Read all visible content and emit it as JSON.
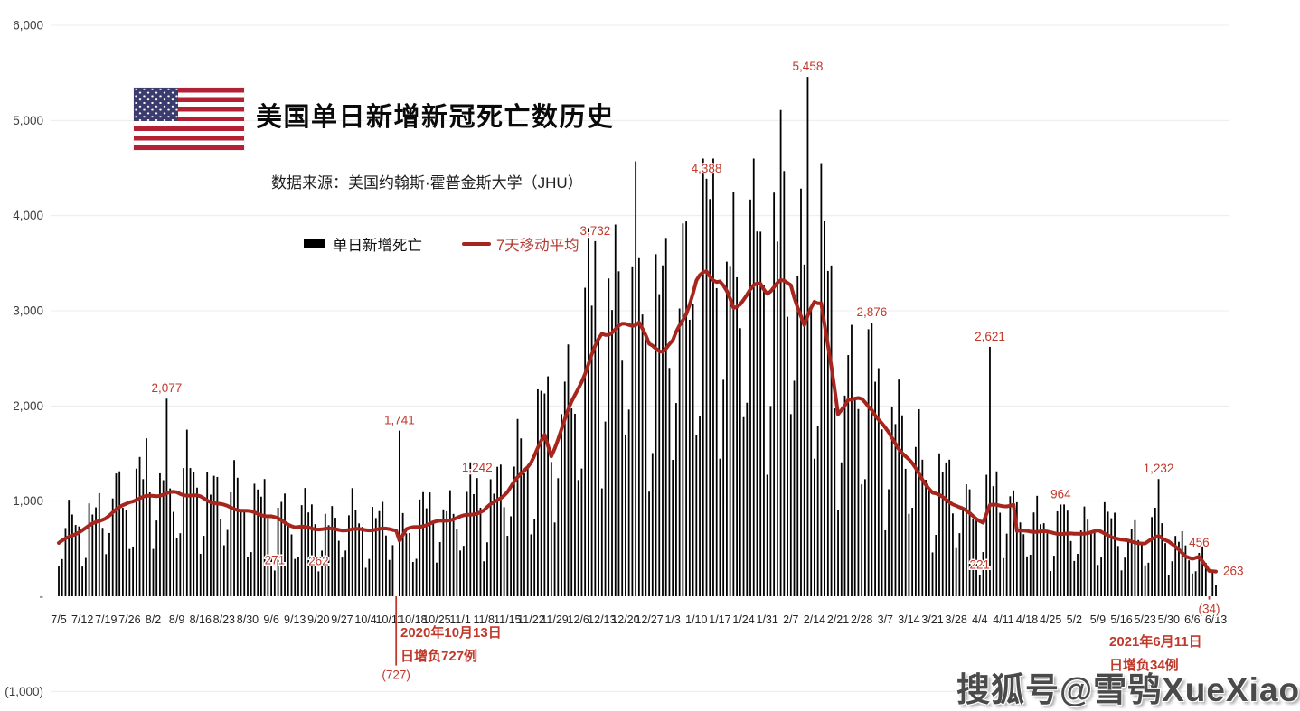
{
  "header": {
    "title": "美国单日新增新冠死亡数历史",
    "source": "数据来源：美国约翰斯·霍普金斯大学（JHU）"
  },
  "legend": {
    "bars_label": "单日新增死亡",
    "ma_label": "7天移动平均"
  },
  "watermark": "搜狐号@雪鸮XueXiao",
  "colors": {
    "bar": "#000000",
    "negative_bar": "#c0392b",
    "ma_line": "#a6261e",
    "annotation": "#c0392b",
    "grid": "#ececec",
    "axis_text": "#3d3d3d"
  },
  "chart_data": {
    "type": "bar",
    "title": "美国单日新增新冠死亡数历史",
    "subtitle": "数据来源：美国约翰斯·霍普金斯大学（JHU）",
    "legend_position": "top-left",
    "grid": "horizontal-faint",
    "x_start_date": "2020-07-05",
    "x_end_date": "2021-06-13",
    "days_total": 344,
    "x_tick_every_days": 7,
    "x_tick_labels": [
      "7/5",
      "7/12",
      "7/19",
      "7/26",
      "8/2",
      "8/9",
      "8/16",
      "8/23",
      "8/30",
      "9/6",
      "9/13",
      "9/20",
      "9/27",
      "10/4",
      "10/11",
      "10/18",
      "10/25",
      "11/1",
      "11/8",
      "11/15",
      "11/22",
      "11/29",
      "12/6",
      "12/13",
      "12/20",
      "12/27",
      "1/3",
      "1/10",
      "1/17",
      "1/24",
      "1/31",
      "2/7",
      "2/14",
      "2/21",
      "2/28",
      "3/7",
      "3/14",
      "3/21",
      "3/28",
      "4/4",
      "4/11",
      "4/18",
      "4/25",
      "5/2",
      "5/9",
      "5/16",
      "5/23",
      "5/30",
      "6/6",
      "6/13"
    ],
    "y_axis": {
      "min": -1000,
      "max": 6000,
      "ticks": [
        {
          "label": "6,000",
          "value": 6000
        },
        {
          "label": "5,000",
          "value": 5000
        },
        {
          "label": "4,000",
          "value": 4000
        },
        {
          "label": "3,000",
          "value": 3000
        },
        {
          "label": "2,000",
          "value": 2000
        },
        {
          "label": "1,000",
          "value": 1000
        },
        {
          "label": "-",
          "value": 0
        },
        {
          "label": "(1,000)",
          "value": -1000
        }
      ]
    },
    "series": [
      {
        "name": "单日新增死亡",
        "type": "bar",
        "color": "#000000"
      },
      {
        "name": "7天移动平均",
        "type": "line",
        "color": "#a6261e"
      }
    ],
    "ma_anchors": [
      [
        0,
        560
      ],
      [
        7,
        700
      ],
      [
        14,
        830
      ],
      [
        21,
        1000
      ],
      [
        28,
        1060
      ],
      [
        35,
        1090
      ],
      [
        42,
        1040
      ],
      [
        49,
        950
      ],
      [
        56,
        890
      ],
      [
        63,
        840
      ],
      [
        70,
        730
      ],
      [
        77,
        710
      ],
      [
        84,
        700
      ],
      [
        91,
        700
      ],
      [
        98,
        705
      ],
      [
        100,
        700
      ],
      [
        101,
        590
      ],
      [
        103,
        700
      ],
      [
        105,
        720
      ],
      [
        112,
        780
      ],
      [
        119,
        830
      ],
      [
        126,
        900
      ],
      [
        133,
        1100
      ],
      [
        140,
        1420
      ],
      [
        144,
        1680
      ],
      [
        146,
        1480
      ],
      [
        150,
        1850
      ],
      [
        154,
        2200
      ],
      [
        161,
        2760
      ],
      [
        168,
        2840
      ],
      [
        172,
        2900
      ],
      [
        175,
        2620
      ],
      [
        179,
        2600
      ],
      [
        182,
        2660
      ],
      [
        186,
        3000
      ],
      [
        189,
        3300
      ],
      [
        192,
        3400
      ],
      [
        196,
        3320
      ],
      [
        200,
        3020
      ],
      [
        203,
        3150
      ],
      [
        208,
        3280
      ],
      [
        210,
        3220
      ],
      [
        214,
        3280
      ],
      [
        217,
        3300
      ],
      [
        221,
        2820
      ],
      [
        224,
        3100
      ],
      [
        226,
        3120
      ],
      [
        231,
        1900
      ],
      [
        234,
        2090
      ],
      [
        238,
        2050
      ],
      [
        241,
        1980
      ],
      [
        245,
        1750
      ],
      [
        252,
        1430
      ],
      [
        259,
        1090
      ],
      [
        266,
        960
      ],
      [
        272,
        820
      ],
      [
        274,
        780
      ],
      [
        276,
        950
      ],
      [
        283,
        960
      ],
      [
        284,
        680
      ],
      [
        287,
        690
      ],
      [
        294,
        670
      ],
      [
        301,
        650
      ],
      [
        308,
        685
      ],
      [
        315,
        590
      ],
      [
        322,
        555
      ],
      [
        326,
        635
      ],
      [
        329,
        580
      ],
      [
        334,
        420
      ],
      [
        336,
        400
      ],
      [
        338,
        415
      ],
      [
        341,
        265
      ],
      [
        343,
        263
      ]
    ],
    "weekday_pattern": [
      0.5,
      0.65,
      1.25,
      1.35,
      1.3,
      1.2,
      0.95
    ],
    "bar_overrides": {
      "26": 1660,
      "32": 2077,
      "64": 271,
      "77": 262,
      "100": -727,
      "101": 1741,
      "124": 1242,
      "159": 3732,
      "192": 4388,
      "214": 5110,
      "222": 5458,
      "241": 2876,
      "273": 221,
      "276": 2621,
      "297": 964,
      "326": 1232,
      "338": 456,
      "341": -34
    },
    "point_labels": [
      {
        "text": "2,077",
        "day": 32,
        "value": 2077
      },
      {
        "text": "1,741",
        "day": 101,
        "value": 1741
      },
      {
        "text": "1,242",
        "day": 124,
        "value": 1242
      },
      {
        "text": "3,732",
        "day": 159,
        "value": 3732
      },
      {
        "text": "4,388",
        "day": 192,
        "value": 4388
      },
      {
        "text": "5,458",
        "day": 222,
        "value": 5458
      },
      {
        "text": "2,876",
        "day": 241,
        "value": 2876
      },
      {
        "text": "2,621",
        "day": 276,
        "value": 2621
      },
      {
        "text": "964",
        "day": 297,
        "value": 964
      },
      {
        "text": "1,232",
        "day": 326,
        "value": 1232
      },
      {
        "text": "456",
        "day": 338,
        "value": 456
      },
      {
        "text": "271",
        "day": 64,
        "value": 271
      },
      {
        "text": "262",
        "day": 77,
        "value": 262
      },
      {
        "text": "221",
        "day": 273,
        "value": 221
      },
      {
        "text": "263",
        "day": 343,
        "value": 263,
        "anchor": "start",
        "dx": 8,
        "dy": 4
      }
    ],
    "neg_labels": [
      {
        "text": "(727)",
        "day": 100,
        "value": -727
      },
      {
        "text": "(34)",
        "day": 341,
        "value": -34
      }
    ],
    "notes": [
      {
        "lines": [
          "2020年10月13日",
          "日增负727例"
        ]
      },
      {
        "lines": [
          "2021年6月11日",
          "日增负34例"
        ]
      }
    ]
  }
}
